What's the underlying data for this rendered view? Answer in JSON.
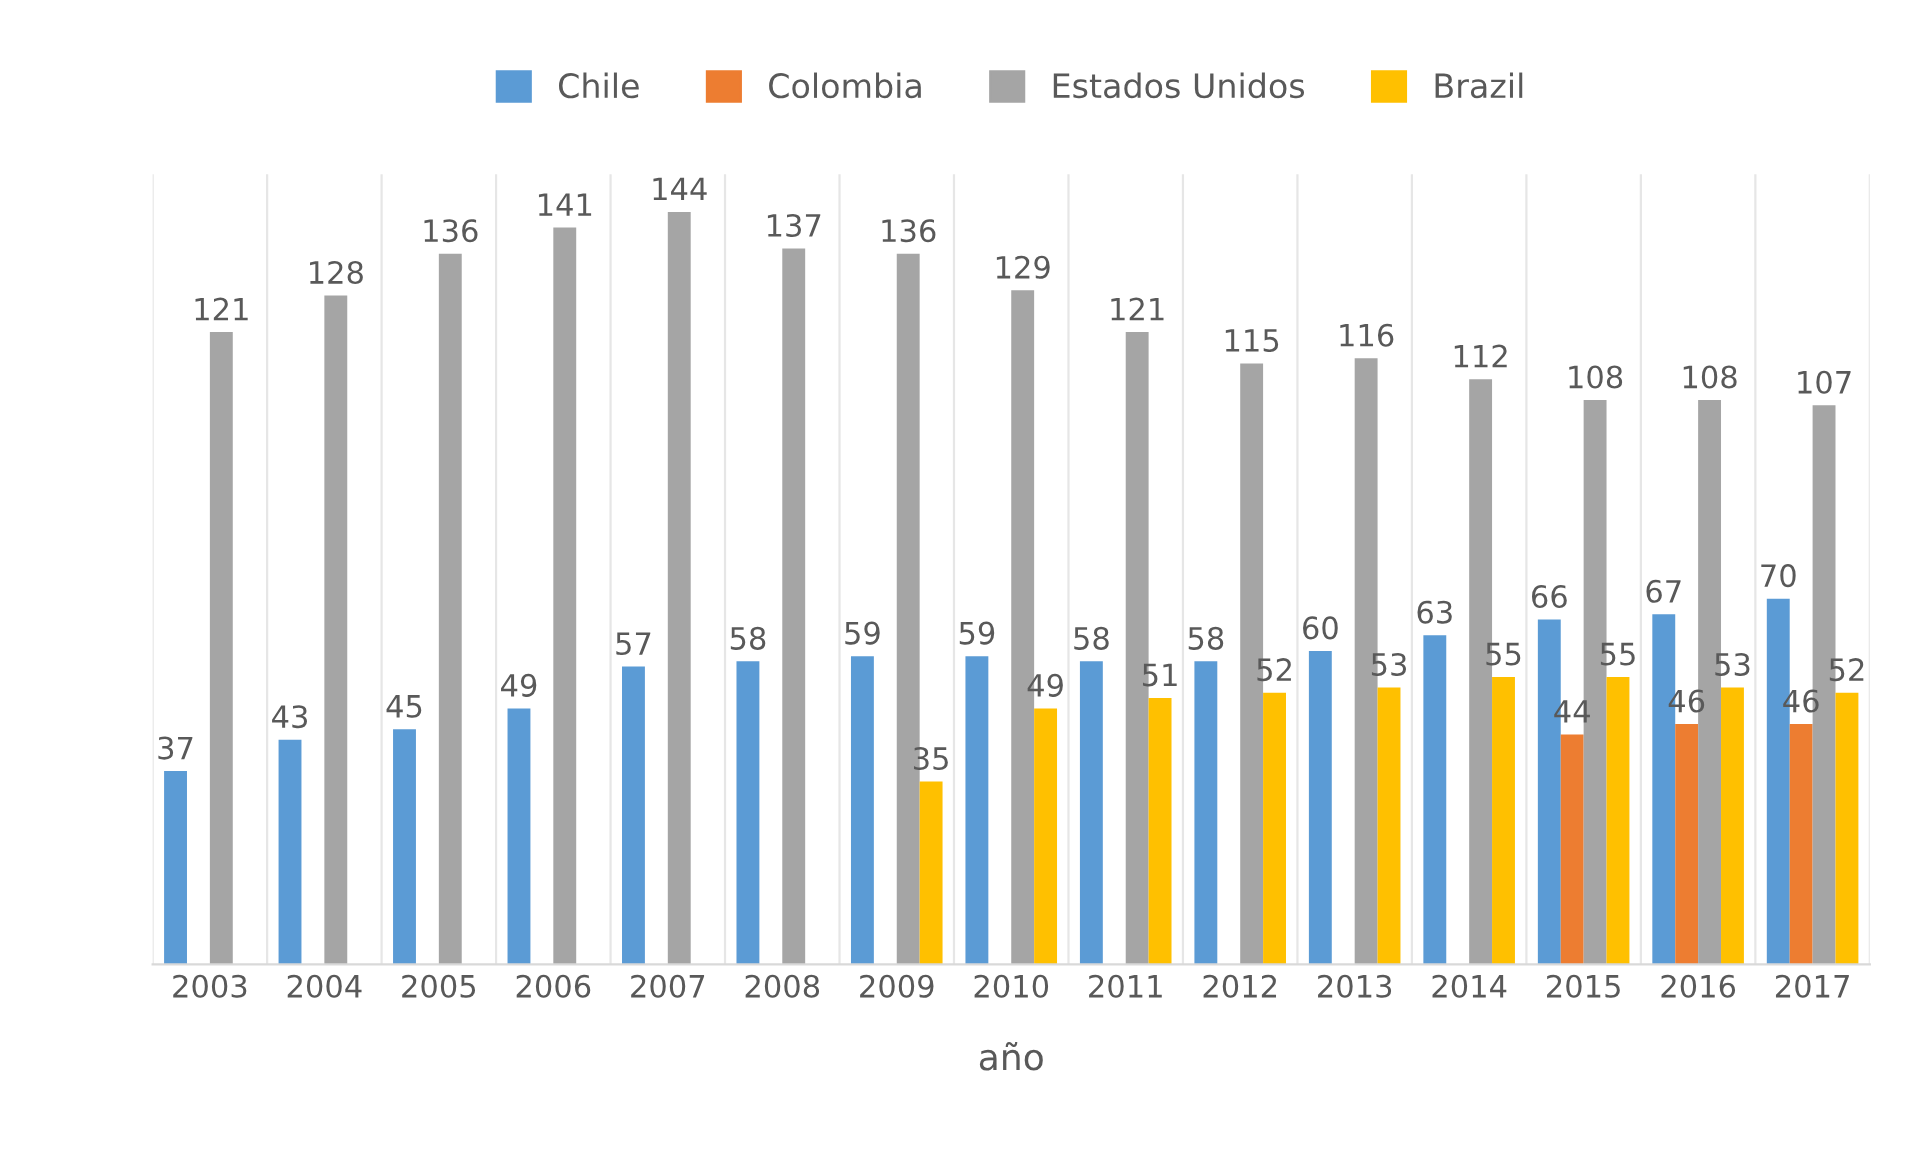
{
  "chart_data": {
    "type": "bar",
    "xlabel": "año",
    "legend": "top",
    "data_labels": true,
    "categories": [
      "2003",
      "2004",
      "2005",
      "2006",
      "2007",
      "2008",
      "2009",
      "2010",
      "2011",
      "2012",
      "2013",
      "2014",
      "2015",
      "2016",
      "2017"
    ],
    "series": [
      {
        "name": "Chile",
        "color": "#5b9bd5",
        "values": [
          37,
          43,
          45,
          49,
          57,
          58,
          59,
          59,
          58,
          58,
          60,
          63,
          66,
          67,
          70
        ]
      },
      {
        "name": "Colombia",
        "color": "#ed7d31",
        "values": [
          null,
          null,
          null,
          null,
          null,
          null,
          null,
          null,
          null,
          null,
          null,
          null,
          44,
          46,
          46
        ]
      },
      {
        "name": "Estados Unidos",
        "color": "#a5a5a5",
        "values": [
          121,
          128,
          136,
          141,
          144,
          137,
          136,
          129,
          121,
          115,
          116,
          112,
          108,
          108,
          107
        ]
      },
      {
        "name": "Brazil",
        "color": "#ffc000",
        "values": [
          null,
          null,
          null,
          null,
          null,
          null,
          35,
          49,
          51,
          52,
          53,
          55,
          55,
          53,
          52
        ]
      }
    ]
  }
}
